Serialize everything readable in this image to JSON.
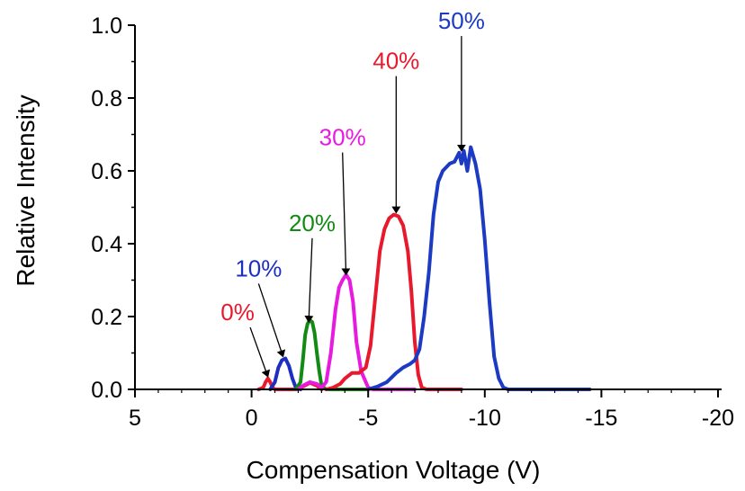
{
  "chart_data": {
    "type": "line",
    "title": "",
    "xlabel": "Compensation Voltage (V)",
    "ylabel": "Relative Intensity",
    "xlim": [
      5,
      -20
    ],
    "ylim": [
      0,
      1.0
    ],
    "x_ticks": [
      5,
      0,
      -5,
      -10,
      -15,
      -20
    ],
    "x_tick_labels": [
      "5",
      "0",
      "-5",
      "-10",
      "-15",
      "-20"
    ],
    "y_ticks": [
      0,
      0.2,
      0.4,
      0.6,
      0.8,
      1.0
    ],
    "y_tick_labels": [
      "0.0",
      "0.2",
      "0.4",
      "0.6",
      "0.8",
      "1.0"
    ],
    "grid": false,
    "legend": "none",
    "series": [
      {
        "label": "0%",
        "color": "#e8192c",
        "label_at": [
          0.6,
          0.19
        ],
        "arrow_tip": [
          -0.7,
          0.03
        ],
        "points": [
          [
            -0.3,
            0.0
          ],
          [
            -0.5,
            0.005
          ],
          [
            -0.6,
            0.02
          ],
          [
            -0.7,
            0.03
          ],
          [
            -0.8,
            0.02
          ],
          [
            -0.9,
            0.005
          ],
          [
            -1.0,
            0.0
          ],
          [
            -1.3,
            0.0
          ],
          [
            -2.0,
            0.0
          ],
          [
            -2.2,
            0.008
          ],
          [
            -2.5,
            0.018
          ],
          [
            -2.8,
            0.01
          ],
          [
            -3.0,
            0.0
          ]
        ]
      },
      {
        "label": "10%",
        "color": "#1c2fc2",
        "label_at": [
          -0.3,
          0.31
        ],
        "arrow_tip": [
          -1.35,
          0.085
        ],
        "points": [
          [
            -0.8,
            0.0
          ],
          [
            -1.0,
            0.02
          ],
          [
            -1.15,
            0.06
          ],
          [
            -1.3,
            0.08
          ],
          [
            -1.45,
            0.085
          ],
          [
            -1.6,
            0.065
          ],
          [
            -1.75,
            0.03
          ],
          [
            -1.9,
            0.005
          ],
          [
            -2.1,
            0.0
          ]
        ]
      },
      {
        "label": "20%",
        "color": "#138a13",
        "label_at": [
          -2.6,
          0.435
        ],
        "arrow_tip": [
          -2.45,
          0.18
        ],
        "points": [
          [
            -1.9,
            0.0
          ],
          [
            -2.1,
            0.02
          ],
          [
            -2.2,
            0.08
          ],
          [
            -2.3,
            0.15
          ],
          [
            -2.4,
            0.18
          ],
          [
            -2.5,
            0.19
          ],
          [
            -2.6,
            0.185
          ],
          [
            -2.7,
            0.155
          ],
          [
            -2.8,
            0.1
          ],
          [
            -2.9,
            0.05
          ],
          [
            -3.0,
            0.01
          ],
          [
            -3.2,
            0.0
          ],
          [
            -5.0,
            0.0
          ]
        ]
      },
      {
        "label": "30%",
        "color": "#e81ae0",
        "label_at": [
          -3.9,
          0.67
        ],
        "arrow_tip": [
          -4.05,
          0.31
        ],
        "points": [
          [
            -2.0,
            0.0
          ],
          [
            -2.2,
            0.01
          ],
          [
            -2.5,
            0.02
          ],
          [
            -2.8,
            0.015
          ],
          [
            -3.0,
            0.005
          ],
          [
            -3.2,
            0.02
          ],
          [
            -3.4,
            0.1
          ],
          [
            -3.6,
            0.22
          ],
          [
            -3.75,
            0.28
          ],
          [
            -3.9,
            0.3
          ],
          [
            -4.05,
            0.315
          ],
          [
            -4.2,
            0.3
          ],
          [
            -4.35,
            0.24
          ],
          [
            -4.5,
            0.13
          ],
          [
            -4.7,
            0.05
          ],
          [
            -4.9,
            0.02
          ],
          [
            -5.0,
            0.005
          ],
          [
            -5.2,
            0.0
          ],
          [
            -7.0,
            0.0
          ]
        ]
      },
      {
        "label": "40%",
        "color": "#e8192c",
        "label_at": [
          -6.2,
          0.88
        ],
        "arrow_tip": [
          -6.2,
          0.48
        ],
        "points": [
          [
            -3.2,
            0.0
          ],
          [
            -3.5,
            0.005
          ],
          [
            -3.8,
            0.015
          ],
          [
            -4.0,
            0.03
          ],
          [
            -4.3,
            0.045
          ],
          [
            -4.6,
            0.045
          ],
          [
            -4.9,
            0.06
          ],
          [
            -5.1,
            0.12
          ],
          [
            -5.3,
            0.25
          ],
          [
            -5.5,
            0.38
          ],
          [
            -5.7,
            0.44
          ],
          [
            -5.9,
            0.47
          ],
          [
            -6.1,
            0.48
          ],
          [
            -6.3,
            0.475
          ],
          [
            -6.5,
            0.45
          ],
          [
            -6.7,
            0.38
          ],
          [
            -6.85,
            0.27
          ],
          [
            -7.0,
            0.13
          ],
          [
            -7.15,
            0.04
          ],
          [
            -7.3,
            0.005
          ],
          [
            -7.5,
            0.0
          ],
          [
            -9.0,
            0.0
          ]
        ]
      },
      {
        "label": "50%",
        "color": "#1c3ac2",
        "label_at": [
          -9.0,
          0.99
        ],
        "arrow_tip": [
          -9.0,
          0.65
        ],
        "points": [
          [
            -5.0,
            0.0
          ],
          [
            -5.4,
            0.008
          ],
          [
            -5.8,
            0.02
          ],
          [
            -6.2,
            0.045
          ],
          [
            -6.5,
            0.06
          ],
          [
            -6.8,
            0.07
          ],
          [
            -7.0,
            0.08
          ],
          [
            -7.2,
            0.11
          ],
          [
            -7.4,
            0.2
          ],
          [
            -7.6,
            0.32
          ],
          [
            -7.8,
            0.48
          ],
          [
            -8.0,
            0.57
          ],
          [
            -8.2,
            0.6
          ],
          [
            -8.5,
            0.62
          ],
          [
            -8.7,
            0.625
          ],
          [
            -8.9,
            0.65
          ],
          [
            -9.0,
            0.62
          ],
          [
            -9.1,
            0.655
          ],
          [
            -9.25,
            0.6
          ],
          [
            -9.4,
            0.665
          ],
          [
            -9.6,
            0.62
          ],
          [
            -9.8,
            0.55
          ],
          [
            -10.0,
            0.41
          ],
          [
            -10.2,
            0.24
          ],
          [
            -10.4,
            0.09
          ],
          [
            -10.6,
            0.03
          ],
          [
            -10.8,
            0.005
          ],
          [
            -11.0,
            0.0
          ],
          [
            -14.5,
            0.0
          ]
        ]
      },
      {
        "label": "",
        "color": "#138a13",
        "points": [
          [
            5.0,
            0.0
          ],
          [
            -20.0,
            0.0
          ]
        ]
      }
    ]
  }
}
